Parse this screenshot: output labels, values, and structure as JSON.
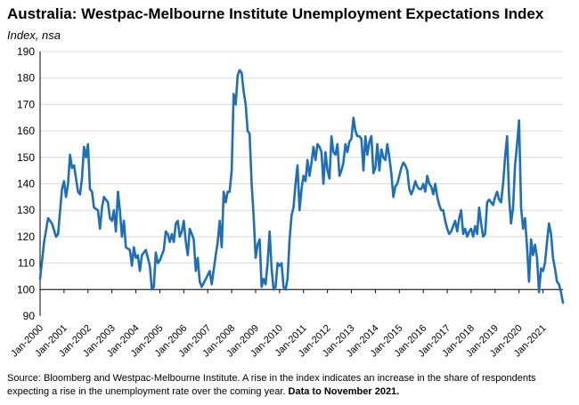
{
  "title": "Australia: Westpac-Melbourne Institute Unemployment Expectations Index",
  "subtitle": "Index, nsa",
  "source": {
    "text": "Source: Bloomberg and Westpac-Melbourne Institute.  A rise in the index indicates an increase in the share of respondents expecting a rise in the unemployment rate over the coming year.",
    "data_note": "Data to November 2021."
  },
  "colors": {
    "line": "#1f6fb8",
    "grid": "#d9d9d9",
    "axis": "#000000"
  },
  "chart_data": {
    "type": "line",
    "title": "Australia: Westpac-Melbourne Institute Unemployment Expectations Index",
    "ylabel": "Index, nsa",
    "xlabel": "",
    "ylim": [
      90,
      190
    ],
    "yticks": [
      90,
      100,
      110,
      120,
      130,
      140,
      150,
      160,
      170,
      180,
      190
    ],
    "xlim": [
      "2000-01",
      "2021-11"
    ],
    "xticks": [
      "Jan-2000",
      "Jan-2001",
      "Jan-2002",
      "Jan-2003",
      "Jan-2004",
      "Jan-2005",
      "Jan-2006",
      "Jan-2007",
      "Jan-2008",
      "Jan-2009",
      "Jan-2010",
      "Jan-2011",
      "Jan-2012",
      "Jan-2013",
      "Jan-2014",
      "Jan-2015",
      "Jan-2016",
      "Jan-2017",
      "Jan-2018",
      "Jan-2019",
      "Jan-2020",
      "Jan-2021"
    ],
    "grid": true,
    "series": [
      {
        "name": "",
        "points": [
          [
            "2000-01",
            104
          ],
          [
            "2000-03",
            118
          ],
          [
            "2000-05",
            127
          ],
          [
            "2000-07",
            125
          ],
          [
            "2000-09",
            120
          ],
          [
            "2000-10",
            121
          ],
          [
            "2000-12",
            138
          ],
          [
            "2001-01",
            141
          ],
          [
            "2001-02",
            135
          ],
          [
            "2001-03",
            140
          ],
          [
            "2001-04",
            151
          ],
          [
            "2001-05",
            146
          ],
          [
            "2001-06",
            147
          ],
          [
            "2001-08",
            137
          ],
          [
            "2001-09",
            136
          ],
          [
            "2001-10",
            142
          ],
          [
            "2001-11",
            154
          ],
          [
            "2001-12",
            150
          ],
          [
            "2002-01",
            155
          ],
          [
            "2002-02",
            138
          ],
          [
            "2002-03",
            137
          ],
          [
            "2002-04",
            131
          ],
          [
            "2002-06",
            130
          ],
          [
            "2002-07",
            123
          ],
          [
            "2002-08",
            131
          ],
          [
            "2002-09",
            135
          ],
          [
            "2002-11",
            133
          ],
          [
            "2002-12",
            127
          ],
          [
            "2003-01",
            126
          ],
          [
            "2003-02",
            130
          ],
          [
            "2003-03",
            122
          ],
          [
            "2003-04",
            137
          ],
          [
            "2003-05",
            130
          ],
          [
            "2003-06",
            120
          ],
          [
            "2003-07",
            126
          ],
          [
            "2003-08",
            116
          ],
          [
            "2003-10",
            115
          ],
          [
            "2003-11",
            109
          ],
          [
            "2003-12",
            116
          ],
          [
            "2004-01",
            112
          ],
          [
            "2004-02",
            113
          ],
          [
            "2004-03",
            107
          ],
          [
            "2004-04",
            113
          ],
          [
            "2004-06",
            115
          ],
          [
            "2004-08",
            109
          ],
          [
            "2004-09",
            100
          ],
          [
            "2004-10",
            101
          ],
          [
            "2004-11",
            114
          ],
          [
            "2004-12",
            110
          ],
          [
            "2005-01",
            111
          ],
          [
            "2005-03",
            115
          ],
          [
            "2005-04",
            122
          ],
          [
            "2005-05",
            121
          ],
          [
            "2005-06",
            118
          ],
          [
            "2005-07",
            121
          ],
          [
            "2005-08",
            118
          ],
          [
            "2005-09",
            125
          ],
          [
            "2005-10",
            126
          ],
          [
            "2005-11",
            120
          ],
          [
            "2005-12",
            122
          ],
          [
            "2006-01",
            126
          ],
          [
            "2006-02",
            118
          ],
          [
            "2006-03",
            113
          ],
          [
            "2006-04",
            123
          ],
          [
            "2006-05",
            121
          ],
          [
            "2006-06",
            119
          ],
          [
            "2006-07",
            107
          ],
          [
            "2006-08",
            112
          ],
          [
            "2006-09",
            103
          ],
          [
            "2006-10",
            101
          ],
          [
            "2006-12",
            104
          ],
          [
            "2007-02",
            107
          ],
          [
            "2007-03",
            102
          ],
          [
            "2007-05",
            113
          ],
          [
            "2007-06",
            118
          ],
          [
            "2007-07",
            126
          ],
          [
            "2007-08",
            116
          ],
          [
            "2007-09",
            137
          ],
          [
            "2007-10",
            133
          ],
          [
            "2007-11",
            137
          ],
          [
            "2007-12",
            137
          ],
          [
            "2008-01",
            145
          ],
          [
            "2008-02",
            174
          ],
          [
            "2008-03",
            170
          ],
          [
            "2008-04",
            181
          ],
          [
            "2008-05",
            183
          ],
          [
            "2008-06",
            182
          ],
          [
            "2008-07",
            175
          ],
          [
            "2008-08",
            170
          ],
          [
            "2008-09",
            160
          ],
          [
            "2008-10",
            159
          ],
          [
            "2008-11",
            140
          ],
          [
            "2008-12",
            128
          ],
          [
            "2009-01",
            112
          ],
          [
            "2009-02",
            117
          ],
          [
            "2009-03",
            119
          ],
          [
            "2009-04",
            101
          ],
          [
            "2009-05",
            104
          ],
          [
            "2009-06",
            102
          ],
          [
            "2009-07",
            110
          ],
          [
            "2009-08",
            122
          ],
          [
            "2009-09",
            108
          ],
          [
            "2009-10",
            100
          ],
          [
            "2009-11",
            101
          ],
          [
            "2009-12",
            110
          ],
          [
            "2010-01",
            109
          ],
          [
            "2010-02",
            110
          ],
          [
            "2010-03",
            101
          ],
          [
            "2010-04",
            100
          ],
          [
            "2010-05",
            104
          ],
          [
            "2010-06",
            119
          ],
          [
            "2010-07",
            128
          ],
          [
            "2010-08",
            131
          ],
          [
            "2010-09",
            140
          ],
          [
            "2010-10",
            147
          ],
          [
            "2010-11",
            130
          ],
          [
            "2010-12",
            138
          ],
          [
            "2011-01",
            143
          ],
          [
            "2011-02",
            141
          ],
          [
            "2011-03",
            149
          ],
          [
            "2011-04",
            143
          ],
          [
            "2011-05",
            148
          ],
          [
            "2011-06",
            154
          ],
          [
            "2011-07",
            149
          ],
          [
            "2011-08",
            155
          ],
          [
            "2011-09",
            154
          ],
          [
            "2011-10",
            152
          ],
          [
            "2011-11",
            140
          ],
          [
            "2011-12",
            152
          ],
          [
            "2012-01",
            145
          ],
          [
            "2012-02",
            142
          ],
          [
            "2012-03",
            158
          ],
          [
            "2012-04",
            152
          ],
          [
            "2012-05",
            151
          ],
          [
            "2012-06",
            155
          ],
          [
            "2012-07",
            143
          ],
          [
            "2012-08",
            145
          ],
          [
            "2012-09",
            148
          ],
          [
            "2012-10",
            155
          ],
          [
            "2012-11",
            152
          ],
          [
            "2012-12",
            156
          ],
          [
            "2013-01",
            157
          ],
          [
            "2013-02",
            165
          ],
          [
            "2013-03",
            160
          ],
          [
            "2013-04",
            158
          ],
          [
            "2013-05",
            158
          ],
          [
            "2013-06",
            157
          ],
          [
            "2013-07",
            145
          ],
          [
            "2013-08",
            158
          ],
          [
            "2013-09",
            151
          ],
          [
            "2013-10",
            156
          ],
          [
            "2013-11",
            158
          ],
          [
            "2013-12",
            144
          ],
          [
            "2014-01",
            146
          ],
          [
            "2014-02",
            155
          ],
          [
            "2014-03",
            145
          ],
          [
            "2014-04",
            153
          ],
          [
            "2014-05",
            150
          ],
          [
            "2014-06",
            149
          ],
          [
            "2014-07",
            155
          ],
          [
            "2014-08",
            150
          ],
          [
            "2014-09",
            144
          ],
          [
            "2014-10",
            135
          ],
          [
            "2014-11",
            139
          ],
          [
            "2014-12",
            140
          ],
          [
            "2015-01",
            143
          ],
          [
            "2015-02",
            146
          ],
          [
            "2015-03",
            148
          ],
          [
            "2015-04",
            147
          ],
          [
            "2015-05",
            145
          ],
          [
            "2015-06",
            138
          ],
          [
            "2015-07",
            136
          ],
          [
            "2015-08",
            138
          ],
          [
            "2015-09",
            141
          ],
          [
            "2015-10",
            139
          ],
          [
            "2015-11",
            138
          ],
          [
            "2015-12",
            138
          ],
          [
            "2016-01",
            140
          ],
          [
            "2016-02",
            137
          ],
          [
            "2016-03",
            143
          ],
          [
            "2016-04",
            140
          ],
          [
            "2016-05",
            139
          ],
          [
            "2016-06",
            136
          ],
          [
            "2016-07",
            140
          ],
          [
            "2016-08",
            135
          ],
          [
            "2016-09",
            132
          ],
          [
            "2016-10",
            130
          ],
          [
            "2016-11",
            130
          ],
          [
            "2016-12",
            126
          ],
          [
            "2017-01",
            123
          ],
          [
            "2017-02",
            121
          ],
          [
            "2017-03",
            122
          ],
          [
            "2017-04",
            124
          ],
          [
            "2017-05",
            126
          ],
          [
            "2017-06",
            122
          ],
          [
            "2017-07",
            127
          ],
          [
            "2017-08",
            130
          ],
          [
            "2017-09",
            121
          ],
          [
            "2017-10",
            123
          ],
          [
            "2017-11",
            120
          ],
          [
            "2017-12",
            122
          ],
          [
            "2018-01",
            123
          ],
          [
            "2018-02",
            120
          ],
          [
            "2018-03",
            124
          ],
          [
            "2018-04",
            121
          ],
          [
            "2018-05",
            131
          ],
          [
            "2018-06",
            125
          ],
          [
            "2018-07",
            120
          ],
          [
            "2018-08",
            121
          ],
          [
            "2018-09",
            133
          ],
          [
            "2018-10",
            134
          ],
          [
            "2018-11",
            133
          ],
          [
            "2018-12",
            132
          ],
          [
            "2019-01",
            135
          ],
          [
            "2019-02",
            137
          ],
          [
            "2019-03",
            134
          ],
          [
            "2019-04",
            133
          ],
          [
            "2019-05",
            140
          ],
          [
            "2019-06",
            150
          ],
          [
            "2019-07",
            158
          ],
          [
            "2019-08",
            135
          ],
          [
            "2019-09",
            125
          ],
          [
            "2019-10",
            131
          ],
          [
            "2019-11",
            147
          ],
          [
            "2019-12",
            155
          ],
          [
            "2020-01",
            164
          ],
          [
            "2020-02",
            131
          ],
          [
            "2020-03",
            123
          ],
          [
            "2020-04",
            127
          ],
          [
            "2020-05",
            116
          ],
          [
            "2020-06",
            103
          ],
          [
            "2020-07",
            119
          ],
          [
            "2020-08",
            113
          ],
          [
            "2020-09",
            117
          ],
          [
            "2020-10",
            112
          ],
          [
            "2020-11",
            99
          ],
          [
            "2020-12",
            108
          ],
          [
            "2021-01",
            107
          ],
          [
            "2021-02",
            110
          ],
          [
            "2021-03",
            118
          ],
          [
            "2021-04",
            125
          ],
          [
            "2021-05",
            121
          ],
          [
            "2021-06",
            112
          ],
          [
            "2021-07",
            108
          ],
          [
            "2021-08",
            103
          ],
          [
            "2021-09",
            102
          ],
          [
            "2021-10",
            99
          ],
          [
            "2021-11",
            95
          ]
        ]
      }
    ]
  }
}
